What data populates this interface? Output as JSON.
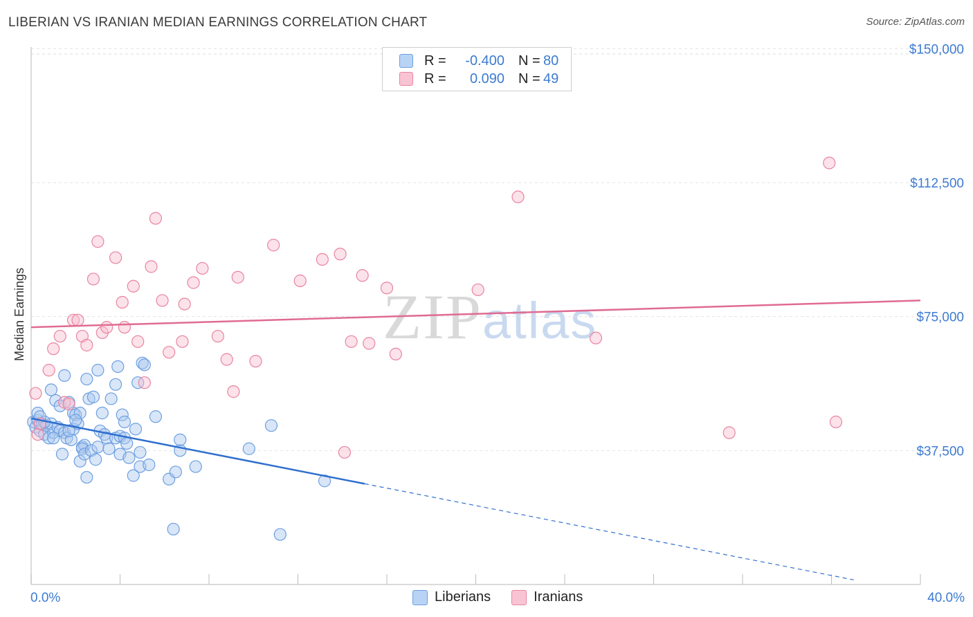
{
  "title": "LIBERIAN VS IRANIAN MEDIAN EARNINGS CORRELATION CHART",
  "source": "Source: ZipAtlas.com",
  "watermark": {
    "zip": "ZIP",
    "atlas": "atlas"
  },
  "legend": {
    "rows": [
      {
        "r_label": "R =",
        "r_value": "-0.400",
        "n_label": "N =",
        "n_value": "80",
        "color": "#b8d3f4",
        "border": "#6c9fe0"
      },
      {
        "r_label": "R =",
        "r_value": "0.090",
        "n_label": "N =",
        "n_value": "49",
        "color": "#f8c4d4",
        "border": "#e9849f"
      }
    ]
  },
  "bottom_legend": [
    {
      "label": "Liberians",
      "color": "#b8d3f4",
      "border": "#6c9fe0"
    },
    {
      "label": "Iranians",
      "color": "#f8c4d4",
      "border": "#e9849f"
    }
  ],
  "chart_data": {
    "type": "scatter",
    "title": "LIBERIAN VS IRANIAN MEDIAN EARNINGS CORRELATION CHART",
    "xlabel": "",
    "ylabel": "Median Earnings",
    "xlim": [
      0,
      40
    ],
    "ylim": [
      0,
      152000
    ],
    "x_tick_labels": [
      "0.0%",
      "40.0%"
    ],
    "y_ticks": [
      37500,
      75000,
      112500,
      150000
    ],
    "y_tick_labels": [
      "$37,500",
      "$75,000",
      "$112,500",
      "$150,000"
    ],
    "series": [
      {
        "name": "Liberians",
        "color": "#6c9fe0",
        "fill": "rgba(170,200,240,0.45)",
        "trend": {
          "x0": 0,
          "y0": 46500,
          "x1": 15,
          "y1": 28200,
          "dash_x1": 37,
          "dash_y1": 1300
        },
        "points": [
          [
            0.1,
            45500
          ],
          [
            0.2,
            44000
          ],
          [
            0.3,
            46000
          ],
          [
            0.3,
            48000
          ],
          [
            0.4,
            43000
          ],
          [
            0.5,
            45000
          ],
          [
            0.6,
            42000
          ],
          [
            0.7,
            44500
          ],
          [
            0.8,
            41000
          ],
          [
            0.9,
            54500
          ],
          [
            0.9,
            45000
          ],
          [
            1.0,
            42500
          ],
          [
            1.1,
            51500
          ],
          [
            1.2,
            44000
          ],
          [
            1.3,
            50000
          ],
          [
            1.3,
            43000
          ],
          [
            1.4,
            36500
          ],
          [
            1.5,
            42500
          ],
          [
            1.6,
            41000
          ],
          [
            1.5,
            58500
          ],
          [
            1.7,
            51000
          ],
          [
            1.8,
            40500
          ],
          [
            1.9,
            48000
          ],
          [
            1.9,
            43500
          ],
          [
            2.0,
            47500
          ],
          [
            2.1,
            45000
          ],
          [
            2.2,
            48000
          ],
          [
            2.3,
            38500
          ],
          [
            2.4,
            39000
          ],
          [
            2.3,
            38000
          ],
          [
            2.2,
            34500
          ],
          [
            2.4,
            36500
          ],
          [
            2.5,
            57500
          ],
          [
            2.6,
            52000
          ],
          [
            2.5,
            30000
          ],
          [
            2.7,
            37500
          ],
          [
            2.8,
            52500
          ],
          [
            2.9,
            35000
          ],
          [
            3.0,
            38500
          ],
          [
            3.1,
            43000
          ],
          [
            3.2,
            48000
          ],
          [
            3.3,
            42000
          ],
          [
            3.4,
            41000
          ],
          [
            3.5,
            38000
          ],
          [
            3.6,
            52000
          ],
          [
            3.8,
            41000
          ],
          [
            3.8,
            56000
          ],
          [
            3.9,
            61000
          ],
          [
            4.0,
            41500
          ],
          [
            4.0,
            36500
          ],
          [
            4.1,
            47500
          ],
          [
            4.2,
            41000
          ],
          [
            4.3,
            39500
          ],
          [
            4.2,
            45500
          ],
          [
            4.4,
            35500
          ],
          [
            4.6,
            30500
          ],
          [
            4.7,
            43500
          ],
          [
            4.8,
            56500
          ],
          [
            4.9,
            37000
          ],
          [
            4.9,
            33000
          ],
          [
            5.0,
            62000
          ],
          [
            5.1,
            61500
          ],
          [
            5.3,
            33500
          ],
          [
            5.6,
            47000
          ],
          [
            6.2,
            29500
          ],
          [
            6.4,
            15500
          ],
          [
            6.5,
            31500
          ],
          [
            6.7,
            37500
          ],
          [
            6.7,
            40500
          ],
          [
            7.4,
            33000
          ],
          [
            9.8,
            38000
          ],
          [
            10.8,
            44500
          ],
          [
            11.2,
            14000
          ],
          [
            13.2,
            29000
          ],
          [
            1.7,
            43000
          ],
          [
            0.6,
            45500
          ],
          [
            2.0,
            46000
          ],
          [
            3.0,
            60000
          ],
          [
            1.0,
            41000
          ],
          [
            0.4,
            47000
          ]
        ]
      },
      {
        "name": "Iranians",
        "color": "#e9849f",
        "fill": "rgba(248,190,208,0.45)",
        "trend": {
          "x0": 0,
          "y0": 72000,
          "x1": 40,
          "y1": 79500
        },
        "points": [
          [
            0.2,
            53500
          ],
          [
            0.3,
            42000
          ],
          [
            0.4,
            45000
          ],
          [
            0.8,
            60000
          ],
          [
            1.0,
            66000
          ],
          [
            1.3,
            69500
          ],
          [
            1.5,
            51000
          ],
          [
            1.7,
            50500
          ],
          [
            1.9,
            74000
          ],
          [
            2.1,
            74000
          ],
          [
            2.3,
            69500
          ],
          [
            2.5,
            67000
          ],
          [
            2.8,
            85500
          ],
          [
            3.0,
            96000
          ],
          [
            3.2,
            70500
          ],
          [
            3.4,
            72000
          ],
          [
            3.8,
            91500
          ],
          [
            4.1,
            79000
          ],
          [
            4.2,
            72000
          ],
          [
            4.6,
            83500
          ],
          [
            4.8,
            68000
          ],
          [
            5.1,
            56500
          ],
          [
            5.4,
            89000
          ],
          [
            5.6,
            102500
          ],
          [
            5.9,
            79500
          ],
          [
            6.2,
            65000
          ],
          [
            6.8,
            68000
          ],
          [
            6.9,
            78500
          ],
          [
            7.3,
            84500
          ],
          [
            7.7,
            88500
          ],
          [
            8.4,
            69500
          ],
          [
            8.8,
            63000
          ],
          [
            9.1,
            54000
          ],
          [
            9.3,
            86000
          ],
          [
            10.1,
            62500
          ],
          [
            10.9,
            95000
          ],
          [
            12.1,
            85000
          ],
          [
            13.1,
            91000
          ],
          [
            13.9,
            92500
          ],
          [
            14.1,
            37000
          ],
          [
            14.4,
            68000
          ],
          [
            14.9,
            86500
          ],
          [
            15.2,
            67500
          ],
          [
            16.0,
            83000
          ],
          [
            16.4,
            64500
          ],
          [
            20.1,
            82500
          ],
          [
            21.9,
            108500
          ],
          [
            25.4,
            69000
          ],
          [
            31.4,
            42500
          ],
          [
            36.2,
            45500
          ],
          [
            35.9,
            118000
          ]
        ]
      }
    ]
  }
}
